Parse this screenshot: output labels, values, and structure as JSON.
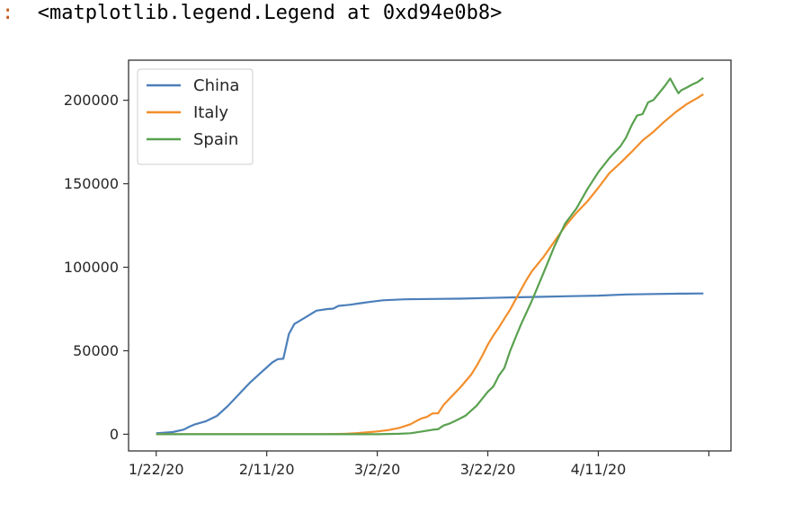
{
  "output": {
    "prompt_marker": ":",
    "repr_text": "<matplotlib.legend.Legend at 0xd94e0b8>"
  },
  "chart_data": {
    "type": "line",
    "title": "",
    "xlabel": "",
    "ylabel": "",
    "x_tick_labels": [
      "1/22/20",
      "2/11/20",
      "3/2/20",
      "3/22/20",
      "4/11/20",
      ""
    ],
    "x_tick_days": [
      0,
      20,
      40,
      60,
      80,
      100
    ],
    "xlim_days": [
      -5,
      104
    ],
    "ylim": [
      -10000,
      224000
    ],
    "y_ticks": [
      0,
      50000,
      100000,
      150000,
      200000
    ],
    "legend_position": "upper-left",
    "grid": false,
    "series": [
      {
        "name": "China",
        "color": "#4c7fba",
        "points": [
          [
            0,
            550
          ],
          [
            3,
            1300
          ],
          [
            5,
            2800
          ],
          [
            6,
            4500
          ],
          [
            7,
            5900
          ],
          [
            9,
            7800
          ],
          [
            11,
            11000
          ],
          [
            13,
            17000
          ],
          [
            15,
            24000
          ],
          [
            17,
            31000
          ],
          [
            19,
            37000
          ],
          [
            21,
            43000
          ],
          [
            22,
            45000
          ],
          [
            23,
            45200
          ],
          [
            24,
            60000
          ],
          [
            25,
            66000
          ],
          [
            27,
            70000
          ],
          [
            29,
            74000
          ],
          [
            31,
            75000
          ],
          [
            32,
            75200
          ],
          [
            33,
            76900
          ],
          [
            35,
            77500
          ],
          [
            37,
            78500
          ],
          [
            39,
            79400
          ],
          [
            41,
            80200
          ],
          [
            45,
            80800
          ],
          [
            50,
            81000
          ],
          [
            55,
            81200
          ],
          [
            60,
            81600
          ],
          [
            65,
            82000
          ],
          [
            70,
            82300
          ],
          [
            75,
            82700
          ],
          [
            80,
            83000
          ],
          [
            85,
            83700
          ],
          [
            90,
            84000
          ],
          [
            95,
            84200
          ],
          [
            99,
            84300
          ]
        ]
      },
      {
        "name": "Italy",
        "color": "#f28e2b",
        "points": [
          [
            0,
            0
          ],
          [
            30,
            0
          ],
          [
            34,
            200
          ],
          [
            36,
            600
          ],
          [
            38,
            1100
          ],
          [
            40,
            1700
          ],
          [
            42,
            2500
          ],
          [
            44,
            3800
          ],
          [
            46,
            6000
          ],
          [
            47,
            7800
          ],
          [
            48,
            9500
          ],
          [
            49,
            10400
          ],
          [
            50,
            12500
          ],
          [
            51,
            12500
          ],
          [
            52,
            17600
          ],
          [
            53,
            21100
          ],
          [
            55,
            27900
          ],
          [
            57,
            35700
          ],
          [
            58,
            41000
          ],
          [
            59,
            47000
          ],
          [
            60,
            53600
          ],
          [
            61,
            59100
          ],
          [
            62,
            63900
          ],
          [
            64,
            74400
          ],
          [
            65,
            80500
          ],
          [
            66,
            86500
          ],
          [
            67,
            92500
          ],
          [
            68,
            97700
          ],
          [
            70,
            105800
          ],
          [
            72,
            115200
          ],
          [
            74,
            124600
          ],
          [
            76,
            132500
          ],
          [
            78,
            139400
          ],
          [
            80,
            147600
          ],
          [
            82,
            156400
          ],
          [
            84,
            162500
          ],
          [
            86,
            169000
          ],
          [
            88,
            175900
          ],
          [
            90,
            181200
          ],
          [
            92,
            187300
          ],
          [
            94,
            192900
          ],
          [
            96,
            197700
          ],
          [
            98,
            201500
          ],
          [
            99,
            203600
          ]
        ]
      },
      {
        "name": "Spain",
        "color": "#59a14f",
        "points": [
          [
            0,
            0
          ],
          [
            40,
            0
          ],
          [
            44,
            300
          ],
          [
            46,
            600
          ],
          [
            48,
            1600
          ],
          [
            50,
            2700
          ],
          [
            51,
            3000
          ],
          [
            52,
            5200
          ],
          [
            53,
            6300
          ],
          [
            54,
            7800
          ],
          [
            56,
            11200
          ],
          [
            58,
            17100
          ],
          [
            60,
            25400
          ],
          [
            61,
            28600
          ],
          [
            62,
            35100
          ],
          [
            63,
            39700
          ],
          [
            64,
            49500
          ],
          [
            65,
            57800
          ],
          [
            66,
            65700
          ],
          [
            68,
            80100
          ],
          [
            70,
            95900
          ],
          [
            71,
            104100
          ],
          [
            72,
            112100
          ],
          [
            73,
            119200
          ],
          [
            74,
            126200
          ],
          [
            76,
            135000
          ],
          [
            78,
            146700
          ],
          [
            80,
            157000
          ],
          [
            82,
            165400
          ],
          [
            84,
            172500
          ],
          [
            85,
            177600
          ],
          [
            86,
            184900
          ],
          [
            87,
            190800
          ],
          [
            88,
            191700
          ],
          [
            89,
            198700
          ],
          [
            90,
            200200
          ],
          [
            92,
            208400
          ],
          [
            93,
            213000
          ],
          [
            94,
            207000
          ],
          [
            94.5,
            204200
          ],
          [
            95,
            206000
          ],
          [
            96,
            207600
          ],
          [
            97,
            209500
          ],
          [
            98,
            211000
          ],
          [
            99,
            213400
          ]
        ]
      }
    ]
  }
}
